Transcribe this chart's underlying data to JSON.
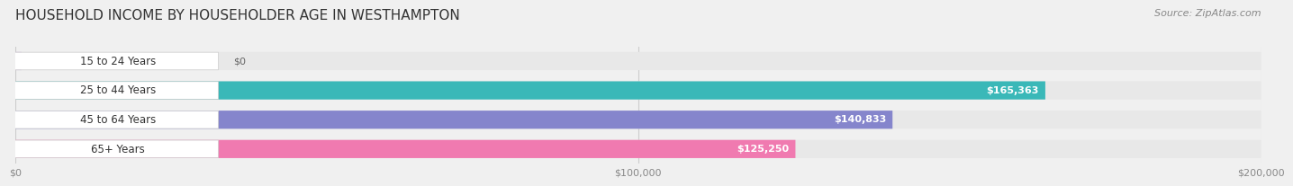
{
  "title": "HOUSEHOLD INCOME BY HOUSEHOLDER AGE IN WESTHAMPTON",
  "source": "Source: ZipAtlas.com",
  "categories": [
    "15 to 24 Years",
    "25 to 44 Years",
    "45 to 64 Years",
    "65+ Years"
  ],
  "values": [
    0,
    165363,
    140833,
    125250
  ],
  "labels": [
    "$0",
    "$165,363",
    "$140,833",
    "$125,250"
  ],
  "colors": [
    "#c9a8d4",
    "#3ab8b8",
    "#8585cc",
    "#f07ab0"
  ],
  "xlim": [
    0,
    200000
  ],
  "xticks": [
    0,
    100000,
    200000
  ],
  "xticklabels": [
    "$0",
    "$100,000",
    "$200,000"
  ],
  "background_color": "#f0f0f0",
  "bar_bg_color": "#e8e8e8",
  "title_fontsize": 11,
  "source_fontsize": 8,
  "bar_height": 0.62,
  "label_fontsize": 8.5,
  "cat_fontsize": 8.5,
  "value_label_fontsize": 8
}
